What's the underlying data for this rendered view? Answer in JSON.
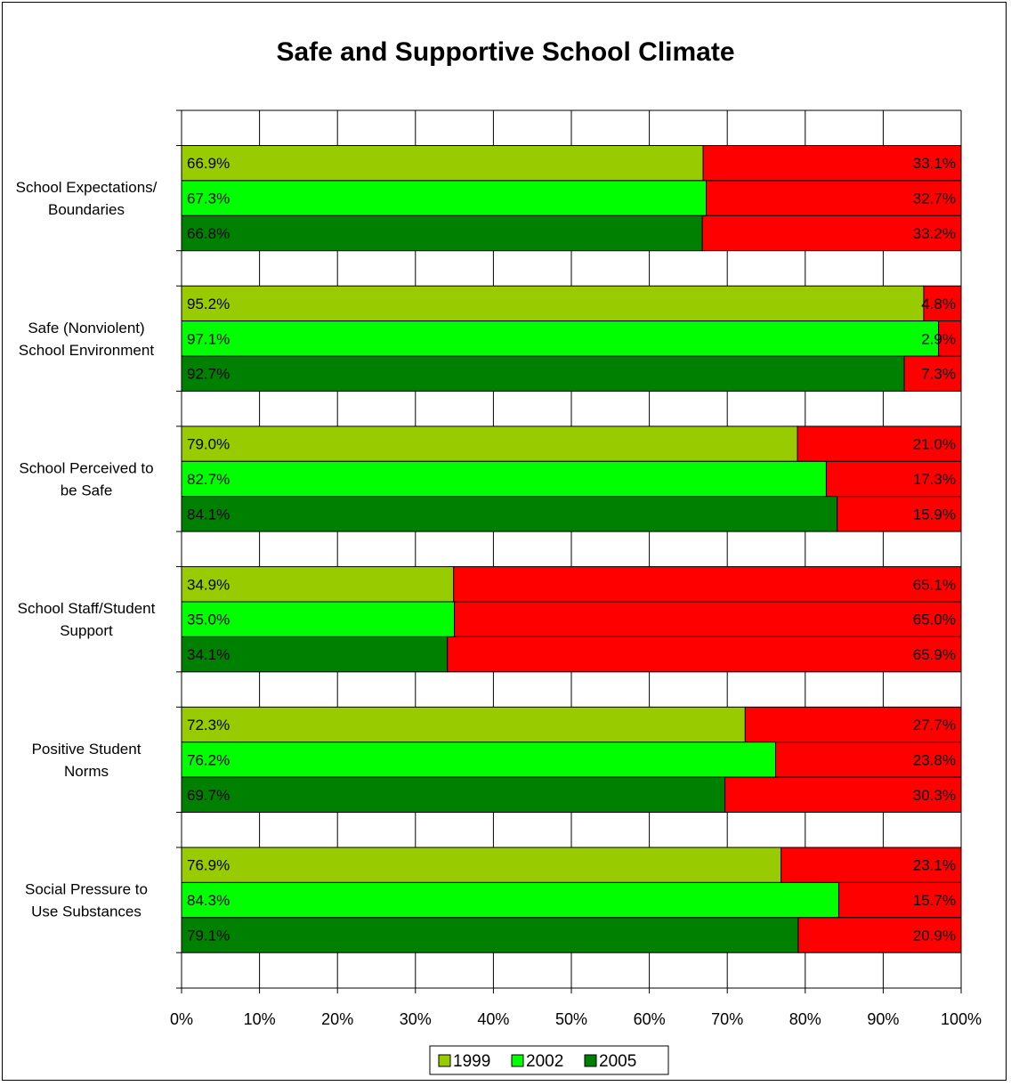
{
  "chart_data": {
    "type": "bar",
    "orientation": "horizontal",
    "stacked": "100%",
    "title": "Safe and Supportive School Climate",
    "categories": [
      "School Expectations/ Boundaries",
      "Safe (Nonviolent) School Environment",
      "School Perceived to be Safe",
      "School Staff/Student Support",
      "Positive Student Norms",
      "Social Pressure to Use Substances"
    ],
    "category_lines": [
      [
        "School Expectations/",
        "Boundaries"
      ],
      [
        "Safe (Nonviolent)",
        "School Environment"
      ],
      [
        "School Perceived to",
        "be Safe"
      ],
      [
        "School Staff/Student",
        "Support"
      ],
      [
        "Positive Student",
        "Norms"
      ],
      [
        "Social Pressure to",
        "Use Substances"
      ]
    ],
    "series": [
      {
        "name": "1999",
        "color": "#99CC00",
        "values": [
          66.9,
          95.2,
          79.0,
          34.9,
          72.3,
          76.9
        ],
        "remainder": [
          33.1,
          4.8,
          21.0,
          65.1,
          27.7,
          23.1
        ]
      },
      {
        "name": "2002",
        "color": "#00FF00",
        "values": [
          67.3,
          97.1,
          82.7,
          35.0,
          76.2,
          84.3
        ],
        "remainder": [
          32.7,
          2.9,
          17.3,
          65.0,
          23.8,
          15.7
        ]
      },
      {
        "name": "2005",
        "color": "#008000",
        "values": [
          66.8,
          92.7,
          84.1,
          34.1,
          69.7,
          79.1
        ],
        "remainder": [
          33.2,
          7.3,
          15.9,
          65.9,
          30.3,
          20.9
        ]
      }
    ],
    "remainder_color": "#FF0000",
    "xlim": [
      0,
      100
    ],
    "x_ticks": [
      "0%",
      "10%",
      "20%",
      "30%",
      "40%",
      "50%",
      "60%",
      "70%",
      "80%",
      "90%",
      "100%"
    ],
    "grid": true,
    "legend": {
      "position": "bottom",
      "entries": [
        "1999",
        "2002",
        "2005"
      ]
    }
  }
}
